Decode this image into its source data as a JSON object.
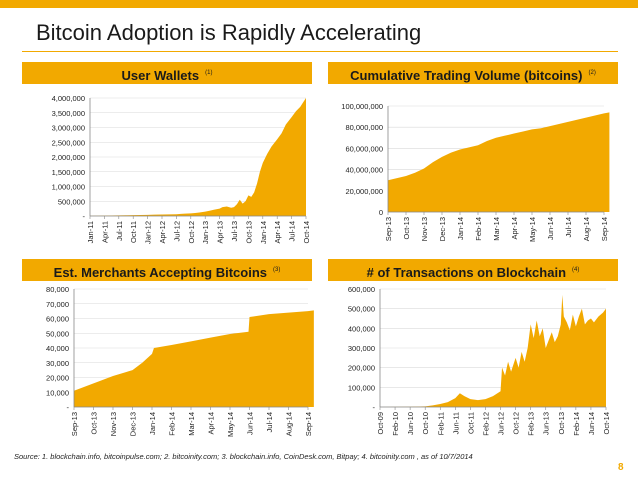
{
  "slide": {
    "title": "Bitcoin Adoption is Rapidly Accelerating",
    "source": "Source:  1. blockchain.info, bitcoinpulse.com;  2. bitcoinity.com;  3. blockchain.info, CoinDesk.com, Bitpay;  4. bitcoinity.com , as of 10/7/2014",
    "page": "8",
    "accent": "#f2a900"
  },
  "chart_data": [
    {
      "type": "area",
      "title": "User Wallets",
      "footnote": "(1)",
      "ylim": [
        0,
        4000000
      ],
      "yticks": [
        0,
        500000,
        1000000,
        1500000,
        2000000,
        2500000,
        3000000,
        3500000,
        4000000
      ],
      "ytick_labels": [
        "-",
        "500,000",
        "1,000,000",
        "1,500,000",
        "2,000,000",
        "2,500,000",
        "3,000,000",
        "3,500,000",
        "4,000,000"
      ],
      "xtick_labels": [
        "Jan-11",
        "Apr-11",
        "Jul-11",
        "Oct-11",
        "Jan-12",
        "Apr-12",
        "Jul-12",
        "Oct-12",
        "Jan-13",
        "Apr-13",
        "Jul-13",
        "Oct-13",
        "Jan-14",
        "Apr-14",
        "Jul-14",
        "Oct-14"
      ],
      "x": [
        0,
        0.5,
        1,
        1.5,
        2,
        2.5,
        3,
        3.5,
        4,
        4.5,
        5,
        5.5,
        6,
        6.3,
        6.6,
        7,
        7.3,
        7.6,
        8,
        8.3,
        8.6,
        9,
        9.2,
        9.5,
        9.8,
        10,
        10.2,
        10.4,
        10.6,
        10.8,
        11,
        11.2,
        11.4,
        11.6,
        11.8,
        12,
        12.3,
        12.6,
        13,
        13.3,
        13.6,
        14,
        14.3,
        14.6,
        14.8,
        15
      ],
      "values": [
        5000,
        8000,
        12000,
        15000,
        20000,
        25000,
        30000,
        35000,
        40000,
        45000,
        50000,
        55000,
        60000,
        70000,
        80000,
        90000,
        100000,
        120000,
        150000,
        180000,
        210000,
        250000,
        300000,
        320000,
        280000,
        300000,
        400000,
        550000,
        420000,
        500000,
        700000,
        650000,
        800000,
        1100000,
        1500000,
        1800000,
        2100000,
        2350000,
        2600000,
        2800000,
        3100000,
        3350000,
        3550000,
        3700000,
        3850000,
        4000000
      ],
      "color": "#f2a900"
    },
    {
      "type": "area",
      "title": "Cumulative Trading Volume (bitcoins)",
      "footnote": "(2)",
      "ylim": [
        0,
        100000000
      ],
      "yticks": [
        0,
        20000000,
        40000000,
        60000000,
        80000000,
        100000000
      ],
      "ytick_labels": [
        "0",
        "20,000,000",
        "40,000,000",
        "60,000,000",
        "80,000,000",
        "100,000,000"
      ],
      "xtick_labels": [
        "Sep-13",
        "Oct-13",
        "Nov-13",
        "Dec-13",
        "Jan-14",
        "Feb-14",
        "Mar-14",
        "Apr-14",
        "May-14",
        "Jun-14",
        "Jul-14",
        "Aug-14",
        "Sep-14"
      ],
      "x": [
        0,
        0.5,
        1,
        1.5,
        2,
        2.5,
        3,
        3.5,
        4,
        4.5,
        5,
        5.5,
        6,
        6.5,
        7,
        7.5,
        8,
        8.5,
        9,
        9.5,
        10,
        10.5,
        11,
        11.5,
        12,
        12.3
      ],
      "values": [
        30000000,
        32000000,
        34000000,
        37000000,
        41000000,
        47000000,
        52000000,
        56000000,
        59000000,
        61000000,
        63000000,
        67000000,
        70000000,
        72000000,
        74000000,
        76000000,
        78000000,
        79000000,
        81000000,
        83000000,
        85000000,
        87000000,
        89000000,
        91000000,
        93000000,
        94000000
      ],
      "color": "#f2a900"
    },
    {
      "type": "area",
      "title": "Est. Merchants Accepting Bitcoins",
      "footnote": "(3)",
      "ylim": [
        0,
        80000
      ],
      "yticks": [
        0,
        10000,
        20000,
        30000,
        40000,
        50000,
        60000,
        70000,
        80000
      ],
      "ytick_labels": [
        "-",
        "10,000",
        "20,000",
        "30,000",
        "40,000",
        "50,000",
        "60,000",
        "70,000",
        "80,000"
      ],
      "xtick_labels": [
        "Sep-13",
        "Oct-13",
        "Nov-13",
        "Dec-13",
        "Jan-14",
        "Feb-14",
        "Mar-14",
        "Apr-14",
        "May-14",
        "Jun-14",
        "Jul-14",
        "Aug-14",
        "Sep-14"
      ],
      "x": [
        0,
        1,
        2,
        3,
        3.5,
        4,
        4.1,
        5,
        6,
        7,
        8,
        8.95,
        9.0,
        10,
        11,
        12,
        12.3
      ],
      "values": [
        11000,
        16000,
        21000,
        25000,
        30000,
        36000,
        40000,
        42000,
        44500,
        47000,
        49500,
        51000,
        61000,
        63000,
        64000,
        65000,
        65500
      ],
      "color": "#f2a900"
    },
    {
      "type": "area",
      "title": "# of Transactions on Blockchain",
      "footnote": "(4)",
      "ylim": [
        0,
        600000
      ],
      "yticks": [
        0,
        100000,
        200000,
        300000,
        400000,
        500000,
        600000
      ],
      "ytick_labels": [
        "-",
        "100,000",
        "200,000",
        "300,000",
        "400,000",
        "500,000",
        "600,000"
      ],
      "xtick_labels": [
        "Oct-09",
        "Feb-10",
        "Jun-10",
        "Oct-10",
        "Feb-11",
        "Jun-11",
        "Oct-11",
        "Feb-12",
        "Jun-12",
        "Oct-12",
        "Feb-13",
        "Jun-13",
        "Oct-13",
        "Feb-14",
        "Jun-14",
        "Oct-14"
      ],
      "x": [
        0,
        1,
        2,
        3,
        3.5,
        4,
        4.5,
        5,
        5.3,
        5.6,
        6,
        6.5,
        7,
        7.5,
        8,
        8.1,
        8.3,
        8.5,
        8.7,
        9,
        9.2,
        9.4,
        9.6,
        9.8,
        10,
        10.2,
        10.4,
        10.6,
        10.8,
        11,
        11.2,
        11.4,
        11.6,
        11.8,
        12,
        12.1,
        12.2,
        12.4,
        12.6,
        12.8,
        13,
        13.2,
        13.4,
        13.6,
        13.8,
        14,
        14.2,
        14.5,
        14.8,
        15
      ],
      "values": [
        0,
        500,
        1000,
        3000,
        8000,
        15000,
        25000,
        45000,
        70000,
        55000,
        40000,
        35000,
        40000,
        55000,
        80000,
        200000,
        160000,
        230000,
        180000,
        250000,
        200000,
        280000,
        230000,
        300000,
        420000,
        350000,
        440000,
        360000,
        400000,
        300000,
        340000,
        380000,
        330000,
        360000,
        420000,
        570000,
        460000,
        430000,
        390000,
        470000,
        410000,
        460000,
        500000,
        420000,
        440000,
        450000,
        430000,
        460000,
        480000,
        500000
      ],
      "color": "#f2a900"
    }
  ]
}
